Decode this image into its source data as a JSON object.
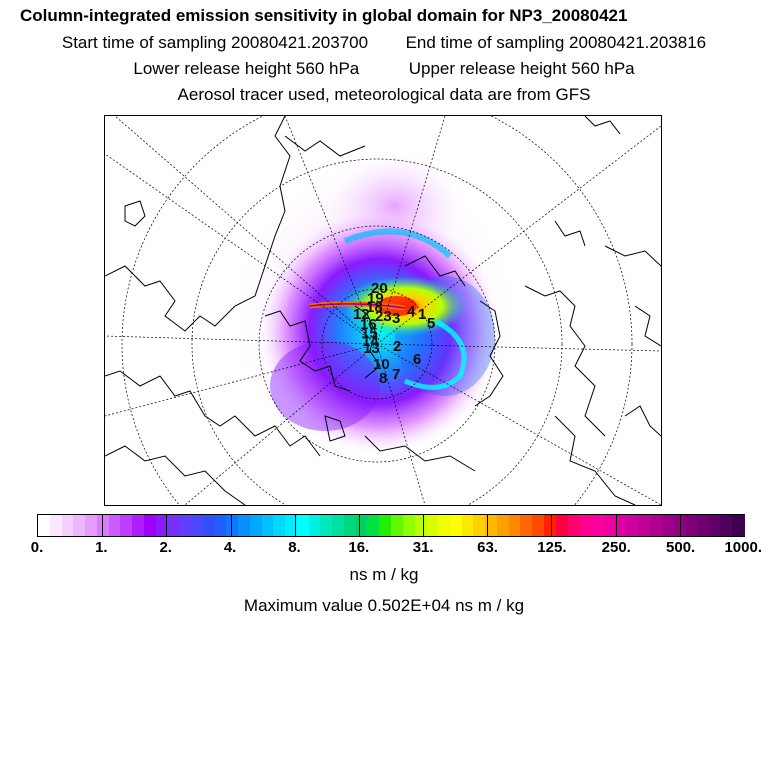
{
  "title": "Column-integrated emission sensitivity in global domain for NP3_20080421",
  "start_time": "Start time of sampling 20080421.203700",
  "end_time": "End time of sampling 20080421.203816",
  "lower_release": "Lower release height  560 hPa",
  "upper_release": "Upper release height  560 hPa",
  "tracer_info": "Aerosol tracer used, meteorological data are from GFS",
  "colorbar": {
    "tick_labels": [
      "0.",
      "1.",
      "2.",
      "4.",
      "8.",
      "16.",
      "31.",
      "63.",
      "125.",
      "250.",
      "500.",
      "1000."
    ],
    "colors": [
      "#ffffff",
      "#fbe8ff",
      "#f5d0ff",
      "#eeb8ff",
      "#e49cff",
      "#d97bff",
      "#cc5cff",
      "#bf3dff",
      "#b01eff",
      "#a000ff",
      "#8a1aff",
      "#7830ff",
      "#6040ff",
      "#4848ff",
      "#3050ff",
      "#2060ff",
      "#1078ff",
      "#0890ff",
      "#00a8ff",
      "#00c0ff",
      "#00d8ff",
      "#00ecff",
      "#00ffff",
      "#00f0e0",
      "#00e8c0",
      "#00e0a0",
      "#00d880",
      "#00d060",
      "#00e040",
      "#20f000",
      "#60f800",
      "#90ff00",
      "#b8ff00",
      "#d8ff00",
      "#f0ff00",
      "#ffff00",
      "#ffe800",
      "#ffd000",
      "#ffb800",
      "#ffa000",
      "#ff8800",
      "#ff6800",
      "#ff4800",
      "#ff2000",
      "#ff0040",
      "#ff0070",
      "#ff0090",
      "#ff00a0",
      "#f000a0",
      "#e000a0",
      "#d000a0",
      "#c00098",
      "#b00090",
      "#a00088",
      "#900080",
      "#800078",
      "#700070",
      "#600068",
      "#500060",
      "#400050"
    ]
  },
  "unit": "ns m / kg",
  "max_value_text": "Maximum value  0.502E+04 ns m / kg",
  "map_labels": [
    "20",
    "19",
    "18",
    "12",
    "23",
    "3",
    "4",
    "1",
    "5",
    "16",
    "15",
    "14",
    "13",
    "2",
    "10",
    "6",
    "8",
    "7"
  ]
}
